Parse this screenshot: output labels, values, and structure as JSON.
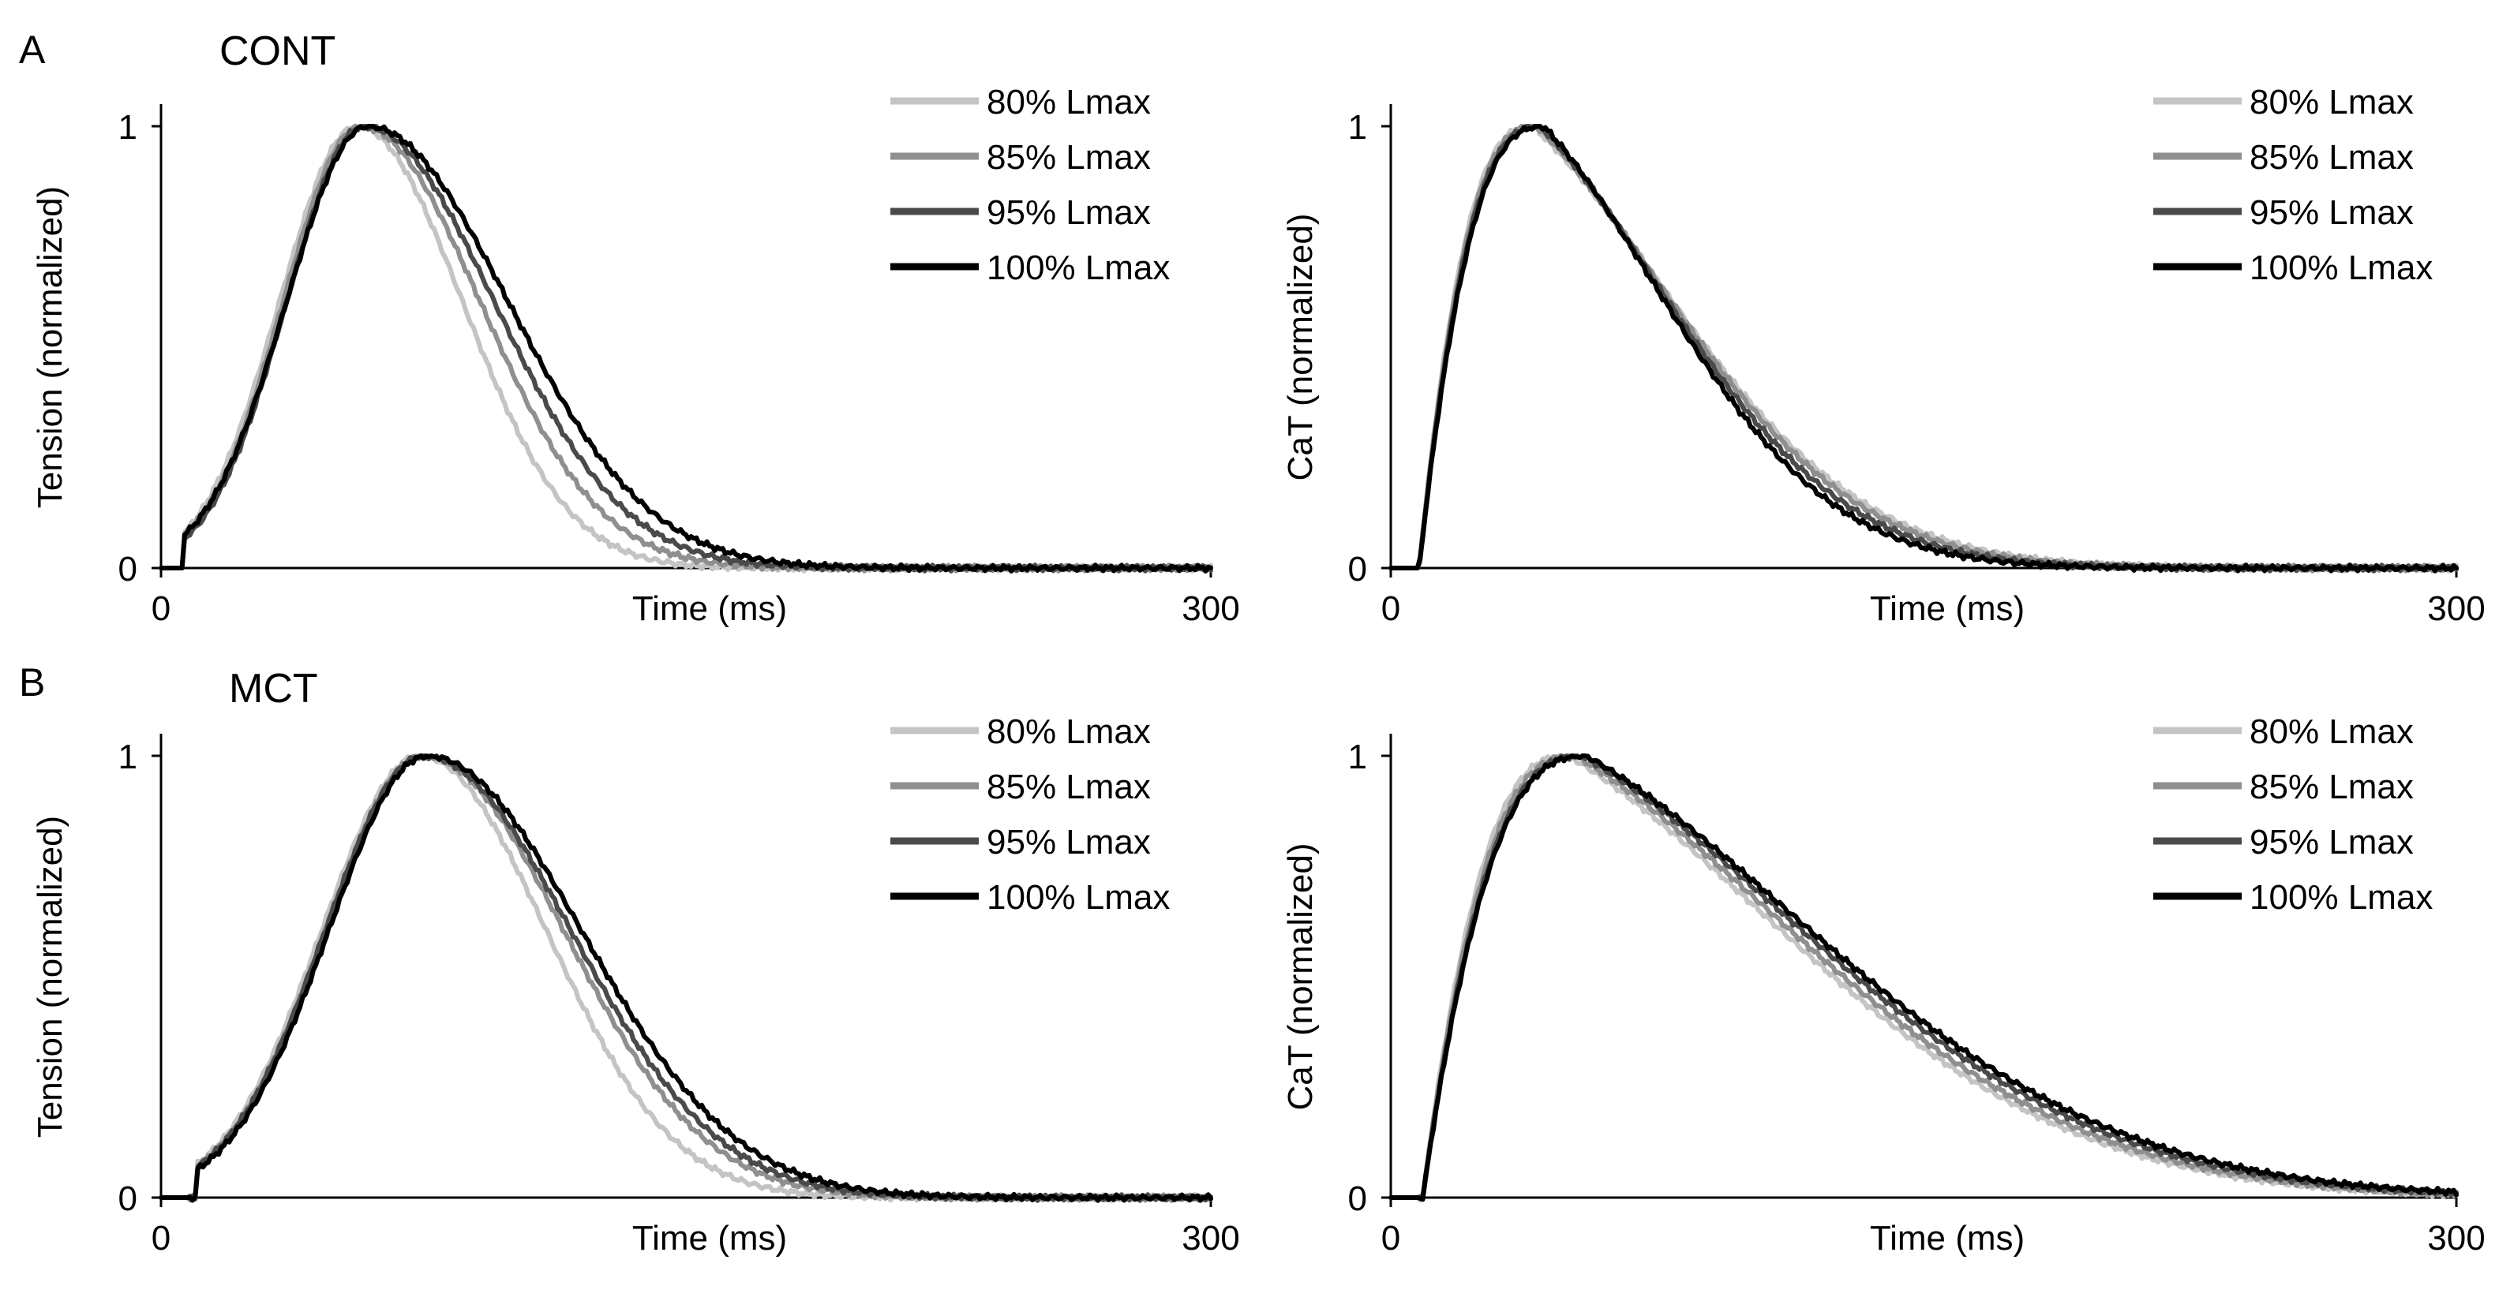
{
  "colors": {
    "80% Lmax": "#c4c4c4",
    "85% Lmax": "#8f8f8f",
    "95% Lmax": "#4a4a4a",
    "100% Lmax": "#000000"
  },
  "rows": [
    {
      "letter": "A",
      "title": "CONT"
    },
    {
      "letter": "B",
      "title": "MCT"
    }
  ],
  "chart_data": [
    {
      "id": "cont-tension",
      "type": "line",
      "row": "A",
      "title": "CONT",
      "xlabel": "Time (ms)",
      "ylabel": "Tension (normalized)",
      "xlim": [
        0,
        300
      ],
      "ylim": [
        0,
        1
      ],
      "xticks": [
        "0",
        "300"
      ],
      "yticks": [
        "0",
        "1"
      ],
      "legend": [
        "80% Lmax",
        "85% Lmax",
        "95% Lmax",
        "100% Lmax"
      ],
      "series": [
        {
          "name": "80% Lmax",
          "peak_time_ms": 56,
          "rise_sigma_ms": 22,
          "decay_sigma_ms": 30,
          "onset_ms": 10
        },
        {
          "name": "85% Lmax",
          "peak_time_ms": 57,
          "rise_sigma_ms": 22,
          "decay_sigma_ms": 34,
          "onset_ms": 10
        },
        {
          "name": "95% Lmax",
          "peak_time_ms": 58,
          "rise_sigma_ms": 22,
          "decay_sigma_ms": 37,
          "onset_ms": 10
        },
        {
          "name": "100% Lmax",
          "peak_time_ms": 59,
          "rise_sigma_ms": 23,
          "decay_sigma_ms": 40,
          "onset_ms": 10
        }
      ]
    },
    {
      "id": "cont-cat",
      "type": "line",
      "row": "A",
      "xlabel": "Time (ms)",
      "ylabel": "CaT (normalized)",
      "xlim": [
        0,
        300
      ],
      "ylim": [
        0,
        1
      ],
      "xticks": [
        "0",
        "300"
      ],
      "yticks": [
        "0",
        "1"
      ],
      "legend": [
        "80% Lmax",
        "85% Lmax",
        "95% Lmax",
        "100% Lmax"
      ],
      "series": [
        {
          "name": "80% Lmax",
          "onset_ms": 8,
          "peak_time_ms": 40,
          "rise_tau_ms": 9,
          "decay_tau_ms": 62
        },
        {
          "name": "85% Lmax",
          "onset_ms": 8,
          "peak_time_ms": 41,
          "rise_tau_ms": 9,
          "decay_tau_ms": 60
        },
        {
          "name": "95% Lmax",
          "onset_ms": 8,
          "peak_time_ms": 42,
          "rise_tau_ms": 9,
          "decay_tau_ms": 57
        },
        {
          "name": "100% Lmax",
          "onset_ms": 8,
          "peak_time_ms": 43,
          "rise_tau_ms": 9,
          "decay_tau_ms": 54
        }
      ]
    },
    {
      "id": "mct-tension",
      "type": "line",
      "row": "B",
      "title": "MCT",
      "xlabel": "Time (ms)",
      "ylabel": "Tension (normalized)",
      "xlim": [
        0,
        300
      ],
      "ylim": [
        0,
        1
      ],
      "xticks": [
        "0",
        "300"
      ],
      "yticks": [
        "0",
        "1"
      ],
      "legend": [
        "80% Lmax",
        "85% Lmax",
        "95% Lmax",
        "100% Lmax"
      ],
      "series": [
        {
          "name": "80% Lmax",
          "peak_time_ms": 74,
          "rise_sigma_ms": 28,
          "decay_sigma_ms": 36,
          "onset_ms": 14
        },
        {
          "name": "85% Lmax",
          "peak_time_ms": 75,
          "rise_sigma_ms": 28,
          "decay_sigma_ms": 40,
          "onset_ms": 14
        },
        {
          "name": "95% Lmax",
          "peak_time_ms": 75,
          "rise_sigma_ms": 28,
          "decay_sigma_ms": 42,
          "onset_ms": 14
        },
        {
          "name": "100% Lmax",
          "peak_time_ms": 76,
          "rise_sigma_ms": 28,
          "decay_sigma_ms": 44,
          "onset_ms": 14
        }
      ]
    },
    {
      "id": "mct-cat",
      "type": "line",
      "row": "B",
      "xlabel": "Time (ms)",
      "ylabel": "CaT (normalized)",
      "xlim": [
        0,
        300
      ],
      "ylim": [
        0,
        1
      ],
      "xticks": [
        "0",
        "300"
      ],
      "yticks": [
        "0",
        "1"
      ],
      "legend": [
        "80% Lmax",
        "85% Lmax",
        "95% Lmax",
        "100% Lmax"
      ],
      "series": [
        {
          "name": "80% Lmax",
          "onset_ms": 9,
          "peak_time_ms": 50,
          "rise_tau_ms": 11,
          "decay_tau_ms": 95
        },
        {
          "name": "85% Lmax",
          "onset_ms": 9,
          "peak_time_ms": 52,
          "rise_tau_ms": 11,
          "decay_tau_ms": 96
        },
        {
          "name": "95% Lmax",
          "onset_ms": 9,
          "peak_time_ms": 54,
          "rise_tau_ms": 11,
          "decay_tau_ms": 98
        },
        {
          "name": "100% Lmax",
          "onset_ms": 9,
          "peak_time_ms": 55,
          "rise_tau_ms": 11,
          "decay_tau_ms": 100
        }
      ]
    }
  ]
}
